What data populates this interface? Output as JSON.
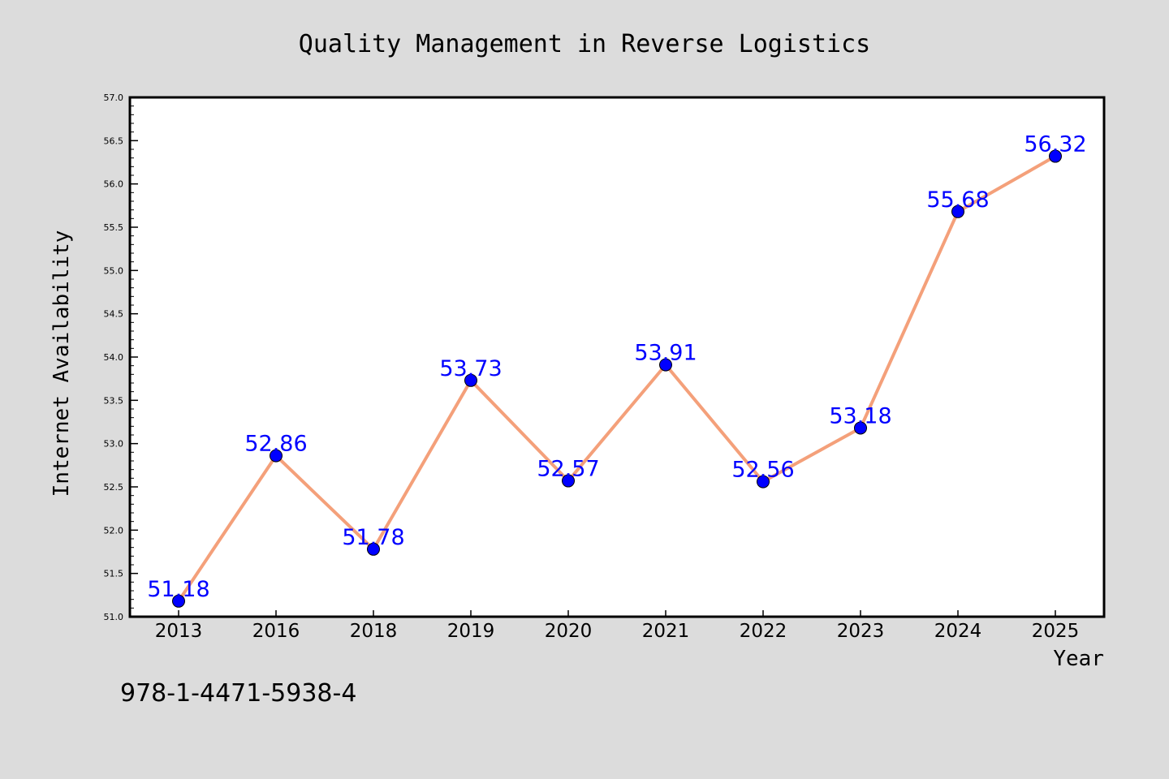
{
  "chart_data": {
    "type": "line",
    "title": "Quality Management in Reverse Logistics",
    "xlabel": "Year",
    "ylabel": "Internet Availability",
    "categories": [
      "2013",
      "2016",
      "2018",
      "2019",
      "2020",
      "2021",
      "2022",
      "2023",
      "2024",
      "2025"
    ],
    "series": [
      {
        "values": [
          51.18,
          52.86,
          51.78,
          53.73,
          52.57,
          53.91,
          52.56,
          53.18,
          55.68,
          56.32
        ],
        "data_labels": [
          "51.18",
          "52.86",
          "51.78",
          "53.73",
          "52.57",
          "53.91",
          "52.56",
          "53.18",
          "55.68",
          "56.32"
        ],
        "line_color": "#f4a07a",
        "marker_color": "#0000ff"
      }
    ],
    "ylim": [
      51.0,
      57.0
    ],
    "yticks": [
      "51.0",
      "51.5",
      "52.0",
      "52.5",
      "53.0",
      "53.5",
      "54.0",
      "54.5",
      "55.0",
      "55.5",
      "56.0",
      "56.5",
      "57.0"
    ],
    "grid": false,
    "legend": "none"
  },
  "annotation": {
    "isbn": "978-1-4471-5938-4"
  },
  "colors": {
    "background": "#dcdcdc",
    "plot_background": "#ffffff",
    "axis": "#000000",
    "label_text": "#0000ff"
  }
}
